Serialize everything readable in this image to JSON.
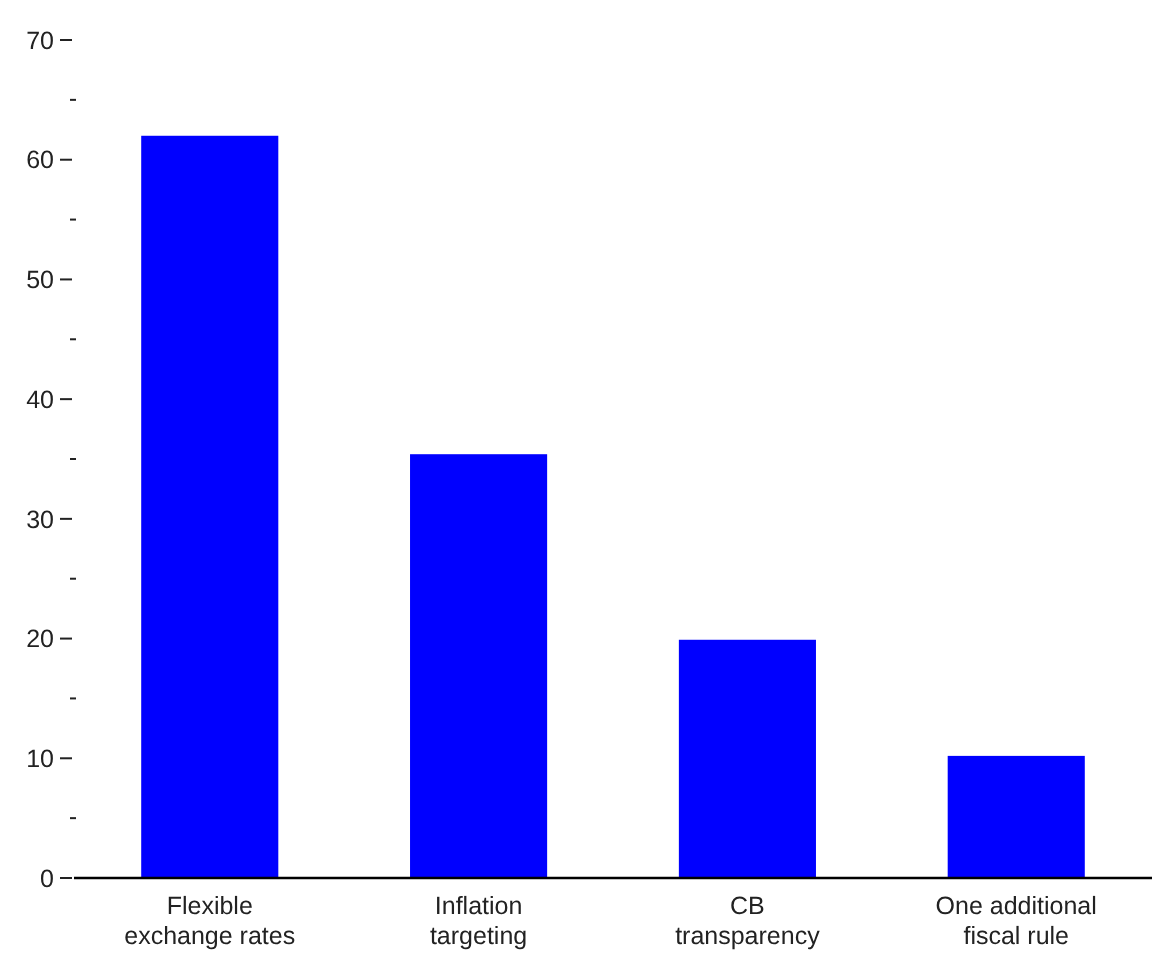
{
  "chart_data": {
    "type": "bar",
    "categories": [
      "Flexible exchange rates",
      "Inflation targeting",
      "CB transparency",
      "One additional fiscal rule"
    ],
    "values": [
      62,
      35.4,
      19.9,
      10.2
    ],
    "color": "#0000ff",
    "ylim": [
      0,
      70
    ],
    "yticks": [
      0,
      {
        "value": 5,
        "label": null
      },
      10,
      {
        "value": 15,
        "label": null
      },
      20,
      {
        "value": 25,
        "label": null
      },
      30,
      {
        "value": 35,
        "label": null
      },
      40,
      {
        "value": 45,
        "label": null
      },
      50,
      {
        "value": 55,
        "label": null
      },
      60,
      {
        "value": 65,
        "label": null
      },
      70
    ],
    "grid": false
  }
}
